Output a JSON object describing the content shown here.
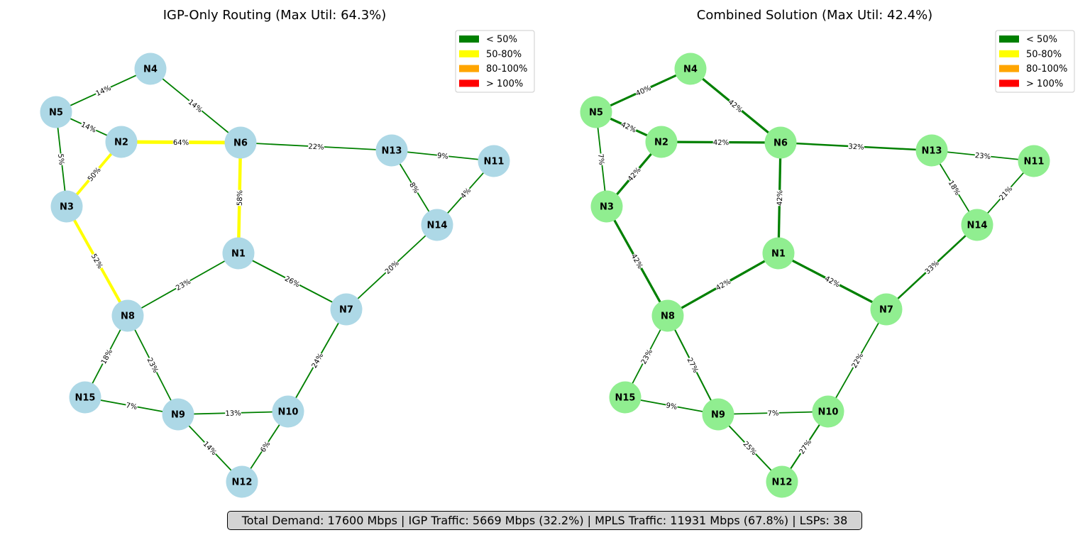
{
  "summary": "Total Demand: 17600 Mbps | IGP Traffic: 5669 Mbps (32.2%) | MPLS Traffic: 11931 Mbps (67.8%) | LSPs: 38",
  "legend": [
    {
      "label": "< 50%",
      "color": "#008000"
    },
    {
      "label": "50-80%",
      "color": "#ffff00"
    },
    {
      "label": "80-100%",
      "color": "#ffa500"
    },
    {
      "label": "> 100%",
      "color": "#ff0000"
    }
  ],
  "nodes": [
    "N1",
    "N2",
    "N3",
    "N4",
    "N5",
    "N6",
    "N7",
    "N8",
    "N9",
    "N10",
    "N11",
    "N12",
    "N13",
    "N14",
    "N15"
  ],
  "edges": [
    [
      "N4",
      "N5"
    ],
    [
      "N4",
      "N6"
    ],
    [
      "N5",
      "N2"
    ],
    [
      "N5",
      "N3"
    ],
    [
      "N2",
      "N6"
    ],
    [
      "N2",
      "N3"
    ],
    [
      "N6",
      "N13"
    ],
    [
      "N6",
      "N1"
    ],
    [
      "N13",
      "N11"
    ],
    [
      "N13",
      "N14"
    ],
    [
      "N11",
      "N14"
    ],
    [
      "N3",
      "N8"
    ],
    [
      "N1",
      "N8"
    ],
    [
      "N1",
      "N7"
    ],
    [
      "N14",
      "N7"
    ],
    [
      "N8",
      "N15"
    ],
    [
      "N8",
      "N9"
    ],
    [
      "N15",
      "N9"
    ],
    [
      "N9",
      "N10"
    ],
    [
      "N9",
      "N12"
    ],
    [
      "N10",
      "N12"
    ],
    [
      "N7",
      "N10"
    ]
  ],
  "panels": [
    {
      "title": "IGP-Only Routing (Max Util: 64.3%)",
      "node_color": "#add8e6",
      "edge_labels": [
        "14%",
        "14%",
        "14%",
        "5%",
        "64%",
        "50%",
        "22%",
        "58%",
        "9%",
        "8%",
        "4%",
        "52%",
        "23%",
        "26%",
        "20%",
        "18%",
        "23%",
        "7%",
        "13%",
        "14%",
        "6%",
        "24%"
      ],
      "edge_utilization": [
        14,
        14,
        14,
        5,
        64.3,
        50,
        22,
        58,
        9,
        8,
        4,
        52,
        23,
        26,
        20,
        18,
        23,
        7,
        13,
        14,
        6,
        24
      ]
    },
    {
      "title": "Combined Solution (Max Util: 42.4%)",
      "node_color": "#90ee90",
      "edge_labels": [
        "40%",
        "42%",
        "42%",
        "7%",
        "42%",
        "42%",
        "32%",
        "42%",
        "23%",
        "18%",
        "21%",
        "42%",
        "42%",
        "42%",
        "33%",
        "23%",
        "27%",
        "9%",
        "7%",
        "25%",
        "27%",
        "22%"
      ],
      "edge_utilization": [
        40,
        42,
        42,
        7,
        42,
        42,
        32,
        42,
        23,
        18,
        21,
        42,
        42,
        42,
        33,
        23,
        27,
        9,
        7,
        25,
        27,
        22
      ]
    }
  ]
}
